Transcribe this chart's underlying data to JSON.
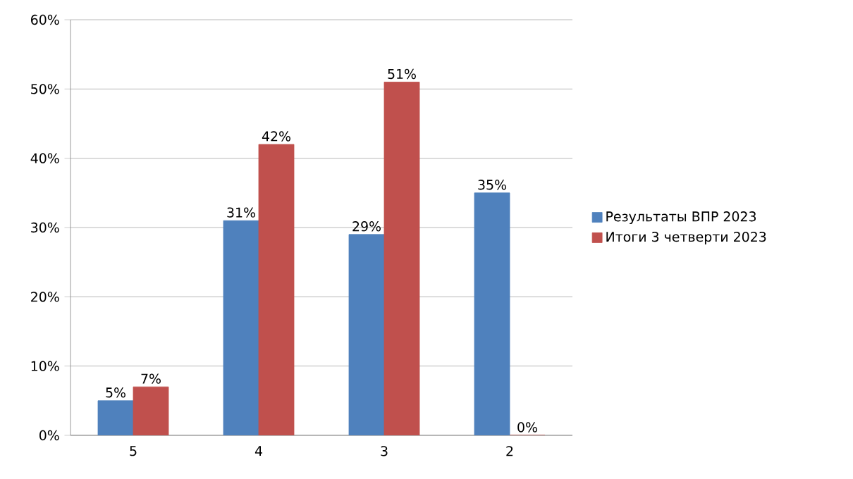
{
  "chart_data": {
    "type": "bar",
    "categories": [
      "5",
      "4",
      "3",
      "2"
    ],
    "series": [
      {
        "name": "Результаты ВПР 2023",
        "color": "#4f81bd",
        "values": [
          5,
          31,
          29,
          35
        ],
        "value_labels": [
          "5%",
          "31%",
          "29%",
          "35%"
        ]
      },
      {
        "name": "Итоги 3 четверти 2023",
        "color": "#c0504d",
        "values": [
          7,
          42,
          51,
          0
        ],
        "value_labels": [
          "7%",
          "42%",
          "51%",
          "0%"
        ]
      }
    ],
    "ylim": [
      0,
      60
    ],
    "yticks": [
      {
        "value": 0,
        "label": "0%"
      },
      {
        "value": 10,
        "label": "10%"
      },
      {
        "value": 20,
        "label": "20%"
      },
      {
        "value": 30,
        "label": "30%"
      },
      {
        "value": 40,
        "label": "40%"
      },
      {
        "value": 50,
        "label": "50%"
      },
      {
        "value": 60,
        "label": "60%"
      }
    ],
    "grid": "y",
    "legend": "right"
  }
}
